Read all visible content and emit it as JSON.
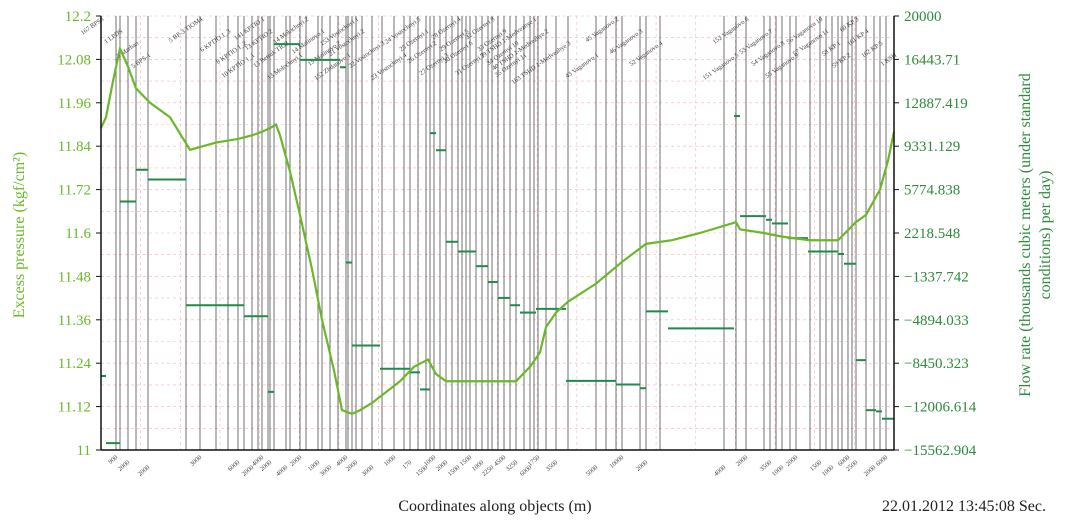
{
  "chart_data": {
    "type": "line",
    "xlabel": "Coordinates along objects (m)",
    "ylabel_left": "Excess pressure (kgf/cm²)",
    "ylabel_right": "Flow rate (thousands cubic meters (under standard conditions) per day)",
    "timestamp": "22.01.2012 13:45:08 Sec.",
    "left_axis": {
      "min": 11,
      "max": 12.2,
      "ticks": [
        "12.2",
        "12.08",
        "11.96",
        "11.84",
        "11.72",
        "11.6",
        "11.48",
        "11.36",
        "11.24",
        "11.12",
        "11"
      ]
    },
    "right_axis": {
      "min": -15562.904,
      "max": 20000,
      "ticks": [
        "20000",
        "16443.71",
        "12887.419",
        "9331.129",
        "5774.838",
        "2218.548",
        "-1337.742",
        "-4894.033",
        "-8450.323",
        "-12006.614",
        "-15562.904"
      ]
    },
    "object_boundaries": [
      101,
      116,
      120,
      128,
      136,
      148,
      186,
      200,
      216,
      228,
      238,
      244,
      252,
      258,
      262,
      268,
      270,
      274,
      286,
      290,
      300,
      306,
      318,
      322,
      330,
      338,
      346,
      348,
      352,
      356,
      362,
      372,
      382,
      394,
      404,
      410,
      418,
      426,
      430,
      434,
      440,
      446,
      452,
      458,
      462,
      466,
      470,
      476,
      482,
      488,
      492,
      498,
      504,
      510,
      516,
      524,
      530,
      534,
      538,
      546,
      556,
      568,
      596,
      606,
      616,
      622,
      640,
      646,
      660,
      724,
      736,
      746,
      764,
      770,
      776,
      782,
      790,
      796,
      810,
      820,
      826,
      832,
      838,
      842,
      848,
      852,
      856,
      866,
      874,
      880,
      886,
      894
    ],
    "object_labels": [
      "167 BPS6",
      "1 LPDS",
      "3 Marhan",
      "5 BPS-1",
      "5 BP-3 TIOM4",
      "6 KPTIO 1_3",
      "8 KPTIO 1_2",
      "10 KPTIO 1_1",
      "141 KPTIO 1",
      "13 KPTIO 2",
      "13 Betruk TIO3",
      "13 Molochnyi 1",
      "14 Molochnyi 2",
      "14 Malinovo 1",
      "15 Malinovo 2",
      "152 Zhdanovo 1",
      "153 Vostochnyi 1",
      "21 Vostochnyi 2",
      "22 Vostochnyi 3",
      "23 Vostochnyi 4",
      "24 Vostochnyi 5",
      "25 Ozernyi 1",
      "26 Ozernyi 2",
      "27 Ozernyi 3",
      "28 Ozernyi 4",
      "29 Ozernyi 5",
      "30 Ozernyi 6",
      "31 Ozernyi 7",
      "32 Ozernyi 8",
      "33 Ozernyi 9",
      "34 Ozernyi 10",
      "35 Ozernyi 11",
      "39 TSHD 1-Medvezhye 1",
      "40 TSHD 1-Medvezhye 2",
      "163 TSHD 1-Medvezhye 3",
      "43 Vaganovo 1",
      "45 Vaganovo 2",
      "46 Vaganovo 3",
      "52 Vaganovo 4",
      "151 Vaganovo 5",
      "152 Vaganovo 6",
      "53 Vaganovo 7",
      "54 Vaganovo 8",
      "55 Vaganovo 9",
      "56 Vaganovo 10",
      "57 Vaganovo 11",
      "58 KP 1",
      "59 KP 2",
      "60 KP 3",
      "161 KP 4",
      "162 KP 5",
      "1 KSH"
    ],
    "segment_lengths": [
      "900",
      "2000",
      "2000",
      "3000",
      "6000",
      "2000",
      "4000",
      "2000",
      "4000",
      "2000",
      "1000",
      "3000",
      "4000",
      "2000",
      "3000",
      "1000",
      "170",
      "1500",
      "1000",
      "2000",
      "1500",
      "1500",
      "1000",
      "2250",
      "4500",
      "3250",
      "6000",
      "1750",
      "3500",
      "5000",
      "10000",
      "2000",
      "4000",
      "2000",
      "3500",
      "1000",
      "2000",
      "1500",
      "1000",
      "6000",
      "2500",
      "2000",
      "6000"
    ],
    "series": [
      {
        "name": "Excess pressure",
        "axis": "left",
        "color": "#6ab82a",
        "points": [
          [
            101,
            11.89
          ],
          [
            106,
            11.92
          ],
          [
            113,
            12.02
          ],
          [
            120,
            12.11
          ],
          [
            128,
            12.06
          ],
          [
            136,
            12.0
          ],
          [
            150,
            11.96
          ],
          [
            170,
            11.92
          ],
          [
            190,
            11.83
          ],
          [
            216,
            11.85
          ],
          [
            238,
            11.86
          ],
          [
            252,
            11.87
          ],
          [
            262,
            11.88
          ],
          [
            270,
            11.89
          ],
          [
            276,
            11.9
          ],
          [
            280,
            11.87
          ],
          [
            290,
            11.77
          ],
          [
            300,
            11.65
          ],
          [
            312,
            11.5
          ],
          [
            322,
            11.36
          ],
          [
            334,
            11.22
          ],
          [
            342,
            11.11
          ],
          [
            352,
            11.1
          ],
          [
            360,
            11.11
          ],
          [
            372,
            11.13
          ],
          [
            386,
            11.16
          ],
          [
            400,
            11.19
          ],
          [
            414,
            11.23
          ],
          [
            428,
            11.25
          ],
          [
            436,
            11.21
          ],
          [
            446,
            11.19
          ],
          [
            470,
            11.19
          ],
          [
            500,
            11.19
          ],
          [
            516,
            11.19
          ],
          [
            530,
            11.23
          ],
          [
            540,
            11.27
          ],
          [
            546,
            11.34
          ],
          [
            556,
            11.38
          ],
          [
            568,
            11.41
          ],
          [
            596,
            11.46
          ],
          [
            622,
            11.52
          ],
          [
            646,
            11.57
          ],
          [
            672,
            11.58
          ],
          [
            700,
            11.6
          ],
          [
            736,
            11.63
          ],
          [
            740,
            11.61
          ],
          [
            764,
            11.6
          ],
          [
            782,
            11.59
          ],
          [
            810,
            11.58
          ],
          [
            838,
            11.58
          ],
          [
            856,
            11.63
          ],
          [
            866,
            11.65
          ],
          [
            880,
            11.72
          ],
          [
            888,
            11.8
          ],
          [
            894,
            11.88
          ]
        ]
      },
      {
        "name": "Flow rate",
        "axis": "right",
        "color": "#1f8a4a",
        "steps": [
          [
            101,
            106,
            -9500
          ],
          [
            106,
            120,
            -15000
          ],
          [
            120,
            136,
            4800
          ],
          [
            136,
            148,
            7400
          ],
          [
            148,
            186,
            6600
          ],
          [
            186,
            244,
            -3700
          ],
          [
            244,
            268,
            -4600
          ],
          [
            268,
            274,
            -10800
          ],
          [
            274,
            300,
            17700
          ],
          [
            300,
            340,
            16400
          ],
          [
            340,
            346,
            15800
          ],
          [
            346,
            352,
            -200
          ],
          [
            352,
            380,
            -7000
          ],
          [
            380,
            410,
            -8900
          ],
          [
            410,
            420,
            -9200
          ],
          [
            420,
            430,
            -10600
          ],
          [
            430,
            436,
            10400
          ],
          [
            436,
            446,
            9000
          ],
          [
            446,
            458,
            1500
          ],
          [
            458,
            476,
            700
          ],
          [
            476,
            488,
            -500
          ],
          [
            488,
            498,
            -1800
          ],
          [
            498,
            510,
            -3100
          ],
          [
            510,
            520,
            -3700
          ],
          [
            520,
            536,
            -4300
          ],
          [
            536,
            566,
            -4000
          ],
          [
            566,
            616,
            -9900
          ],
          [
            616,
            640,
            -10200
          ],
          [
            640,
            646,
            -10500
          ],
          [
            646,
            668,
            -4200
          ],
          [
            668,
            734,
            -5600
          ],
          [
            734,
            740,
            11800
          ],
          [
            740,
            766,
            3600
          ],
          [
            766,
            772,
            3300
          ],
          [
            772,
            788,
            3000
          ],
          [
            788,
            808,
            1800
          ],
          [
            808,
            838,
            700
          ],
          [
            838,
            844,
            500
          ],
          [
            844,
            856,
            -300
          ],
          [
            856,
            866,
            -8200
          ],
          [
            866,
            876,
            -12300
          ],
          [
            876,
            882,
            -12400
          ],
          [
            882,
            894,
            -13000
          ]
        ]
      }
    ]
  }
}
